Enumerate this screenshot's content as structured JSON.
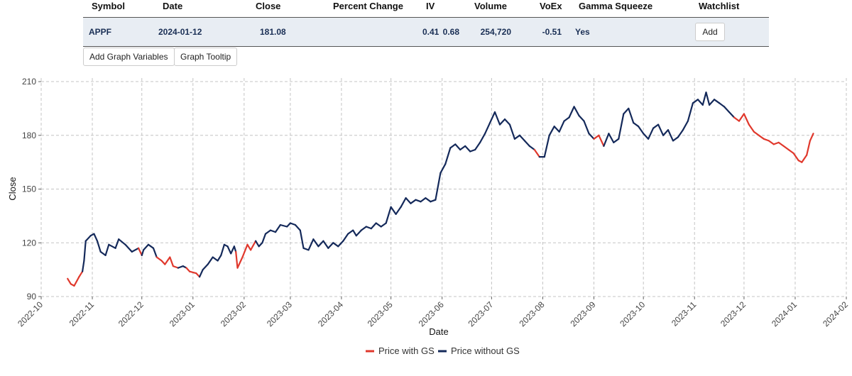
{
  "table": {
    "headers": [
      "Symbol",
      "Date",
      "Close",
      "Percent Change",
      "IV",
      "Volume",
      "VoEx",
      "Gamma Squeeze",
      "Watchlist"
    ],
    "row": {
      "symbol": "APPF",
      "date": "2024-01-12",
      "close": "181.08",
      "percent_change": "0.68",
      "iv": "0.41",
      "volume": "254,720",
      "voex": "-0.51",
      "gamma_squeeze": "Yes",
      "watchlist_button": "Add"
    }
  },
  "buttons": {
    "add_graph_variables": "Add Graph Variables",
    "graph_tooltip": "Graph Tooltip"
  },
  "colors": {
    "with_gs": "#e0382c",
    "without_gs": "#14295a",
    "grid": "#c4c4c4"
  },
  "chart_data": {
    "type": "line",
    "xlabel": "Date",
    "ylabel": "Close",
    "ylim": [
      90,
      212
    ],
    "yticks": [
      90,
      120,
      150,
      180,
      210
    ],
    "xlim": [
      "2022-10-01",
      "2024-02-01"
    ],
    "xticks": [
      "2022-10",
      "2022-11",
      "2022-12",
      "2023-01",
      "2023-02",
      "2023-03",
      "2023-04",
      "2023-05",
      "2023-06",
      "2023-07",
      "2023-08",
      "2023-09",
      "2023-10",
      "2023-11",
      "2023-12",
      "2024-01",
      "2024-02"
    ],
    "grid": true,
    "legend_position": "bottom",
    "legend": [
      "Price with GS",
      "Price without GS"
    ],
    "points": [
      [
        "2022-10-17",
        100,
        1
      ],
      [
        "2022-10-19",
        97,
        1
      ],
      [
        "2022-10-21",
        96,
        1
      ],
      [
        "2022-10-24",
        101,
        1
      ],
      [
        "2022-10-26",
        104,
        1
      ],
      [
        "2022-10-27",
        110,
        0
      ],
      [
        "2022-10-28",
        121,
        0
      ],
      [
        "2022-10-31",
        124,
        0
      ],
      [
        "2022-11-02",
        125,
        0
      ],
      [
        "2022-11-04",
        121,
        0
      ],
      [
        "2022-11-06",
        115,
        0
      ],
      [
        "2022-11-09",
        113,
        0
      ],
      [
        "2022-11-11",
        119,
        0
      ],
      [
        "2022-11-15",
        117,
        0
      ],
      [
        "2022-11-17",
        122,
        0
      ],
      [
        "2022-11-21",
        119,
        0
      ],
      [
        "2022-11-25",
        115,
        0
      ],
      [
        "2022-11-29",
        117,
        0
      ],
      [
        "2022-12-01",
        113,
        1
      ],
      [
        "2022-12-02",
        116,
        0
      ],
      [
        "2022-12-05",
        119,
        0
      ],
      [
        "2022-12-08",
        117,
        0
      ],
      [
        "2022-12-10",
        112,
        0
      ],
      [
        "2022-12-13",
        110,
        1
      ],
      [
        "2022-12-15",
        108,
        1
      ],
      [
        "2022-12-18",
        112,
        1
      ],
      [
        "2022-12-20",
        107,
        1
      ],
      [
        "2022-12-23",
        106,
        1
      ],
      [
        "2022-12-26",
        107,
        0
      ],
      [
        "2022-12-28",
        106,
        0
      ],
      [
        "2022-12-30",
        104,
        1
      ],
      [
        "2023-01-03",
        103,
        1
      ],
      [
        "2023-01-05",
        101,
        1
      ],
      [
        "2023-01-07",
        105,
        0
      ],
      [
        "2023-01-10",
        108,
        0
      ],
      [
        "2023-01-13",
        112,
        0
      ],
      [
        "2023-01-16",
        110,
        0
      ],
      [
        "2023-01-18",
        113,
        0
      ],
      [
        "2023-01-20",
        119,
        0
      ],
      [
        "2023-01-22",
        118,
        0
      ],
      [
        "2023-01-24",
        114,
        0
      ],
      [
        "2023-01-26",
        118,
        0
      ],
      [
        "2023-01-27",
        115,
        0
      ],
      [
        "2023-01-28",
        106,
        1
      ],
      [
        "2023-01-31",
        112,
        1
      ],
      [
        "2023-02-03",
        119,
        1
      ],
      [
        "2023-02-05",
        116,
        1
      ],
      [
        "2023-02-08",
        121,
        1
      ],
      [
        "2023-02-10",
        118,
        0
      ],
      [
        "2023-02-12",
        120,
        0
      ],
      [
        "2023-02-14",
        125,
        0
      ],
      [
        "2023-02-17",
        127,
        0
      ],
      [
        "2023-02-20",
        126,
        0
      ],
      [
        "2023-02-23",
        130,
        0
      ],
      [
        "2023-02-27",
        129,
        0
      ],
      [
        "2023-03-01",
        131,
        0
      ],
      [
        "2023-03-04",
        130,
        0
      ],
      [
        "2023-03-07",
        127,
        0
      ],
      [
        "2023-03-09",
        117,
        0
      ],
      [
        "2023-03-12",
        116,
        0
      ],
      [
        "2023-03-15",
        122,
        0
      ],
      [
        "2023-03-18",
        118,
        0
      ],
      [
        "2023-03-21",
        121,
        0
      ],
      [
        "2023-03-24",
        117,
        0
      ],
      [
        "2023-03-27",
        120,
        0
      ],
      [
        "2023-03-30",
        118,
        0
      ],
      [
        "2023-04-02",
        121,
        0
      ],
      [
        "2023-04-05",
        125,
        0
      ],
      [
        "2023-04-08",
        127,
        0
      ],
      [
        "2023-04-10",
        124,
        0
      ],
      [
        "2023-04-13",
        127,
        0
      ],
      [
        "2023-04-16",
        129,
        0
      ],
      [
        "2023-04-19",
        128,
        0
      ],
      [
        "2023-04-22",
        131,
        0
      ],
      [
        "2023-04-25",
        129,
        0
      ],
      [
        "2023-04-28",
        131,
        0
      ],
      [
        "2023-05-01",
        140,
        0
      ],
      [
        "2023-05-04",
        136,
        0
      ],
      [
        "2023-05-07",
        140,
        0
      ],
      [
        "2023-05-10",
        145,
        0
      ],
      [
        "2023-05-13",
        142,
        0
      ],
      [
        "2023-05-16",
        144,
        0
      ],
      [
        "2023-05-19",
        143,
        0
      ],
      [
        "2023-05-22",
        145,
        0
      ],
      [
        "2023-05-25",
        143,
        0
      ],
      [
        "2023-05-28",
        144,
        0
      ],
      [
        "2023-05-31",
        159,
        0
      ],
      [
        "2023-06-03",
        164,
        0
      ],
      [
        "2023-06-06",
        173,
        0
      ],
      [
        "2023-06-09",
        175,
        0
      ],
      [
        "2023-06-12",
        172,
        0
      ],
      [
        "2023-06-15",
        174,
        0
      ],
      [
        "2023-06-18",
        171,
        0
      ],
      [
        "2023-06-21",
        172,
        0
      ],
      [
        "2023-06-24",
        176,
        0
      ],
      [
        "2023-06-27",
        181,
        0
      ],
      [
        "2023-06-30",
        187,
        0
      ],
      [
        "2023-07-03",
        193,
        0
      ],
      [
        "2023-07-06",
        186,
        0
      ],
      [
        "2023-07-09",
        189,
        0
      ],
      [
        "2023-07-12",
        186,
        0
      ],
      [
        "2023-07-15",
        178,
        0
      ],
      [
        "2023-07-18",
        180,
        0
      ],
      [
        "2023-07-21",
        177,
        0
      ],
      [
        "2023-07-24",
        174,
        0
      ],
      [
        "2023-07-27",
        172,
        0
      ],
      [
        "2023-07-30",
        168,
        1
      ],
      [
        "2023-08-02",
        168,
        0
      ],
      [
        "2023-08-05",
        180,
        0
      ],
      [
        "2023-08-08",
        185,
        0
      ],
      [
        "2023-08-11",
        182,
        0
      ],
      [
        "2023-08-14",
        188,
        0
      ],
      [
        "2023-08-17",
        190,
        0
      ],
      [
        "2023-08-20",
        196,
        0
      ],
      [
        "2023-08-23",
        191,
        0
      ],
      [
        "2023-08-26",
        188,
        0
      ],
      [
        "2023-08-29",
        181,
        0
      ],
      [
        "2023-09-01",
        178,
        0
      ],
      [
        "2023-09-04",
        180,
        1
      ],
      [
        "2023-09-07",
        174,
        1
      ],
      [
        "2023-09-10",
        181,
        0
      ],
      [
        "2023-09-13",
        176,
        0
      ],
      [
        "2023-09-16",
        178,
        0
      ],
      [
        "2023-09-19",
        192,
        0
      ],
      [
        "2023-09-22",
        195,
        0
      ],
      [
        "2023-09-25",
        187,
        0
      ],
      [
        "2023-09-28",
        185,
        0
      ],
      [
        "2023-10-01",
        181,
        0
      ],
      [
        "2023-10-04",
        178,
        0
      ],
      [
        "2023-10-07",
        184,
        0
      ],
      [
        "2023-10-10",
        186,
        0
      ],
      [
        "2023-10-13",
        180,
        0
      ],
      [
        "2023-10-16",
        183,
        0
      ],
      [
        "2023-10-19",
        177,
        0
      ],
      [
        "2023-10-22",
        179,
        0
      ],
      [
        "2023-10-25",
        183,
        0
      ],
      [
        "2023-10-28",
        188,
        0
      ],
      [
        "2023-10-31",
        198,
        0
      ],
      [
        "2023-11-03",
        200,
        0
      ],
      [
        "2023-11-06",
        197,
        0
      ],
      [
        "2023-11-08",
        204,
        0
      ],
      [
        "2023-11-10",
        197,
        0
      ],
      [
        "2023-11-13",
        200,
        0
      ],
      [
        "2023-11-16",
        198,
        0
      ],
      [
        "2023-11-19",
        196,
        0
      ],
      [
        "2023-11-22",
        193,
        0
      ],
      [
        "2023-11-25",
        190,
        0
      ],
      [
        "2023-11-28",
        188,
        1
      ],
      [
        "2023-12-01",
        192,
        1
      ],
      [
        "2023-12-04",
        186,
        1
      ],
      [
        "2023-12-07",
        182,
        1
      ],
      [
        "2023-12-10",
        180,
        1
      ],
      [
        "2023-12-13",
        178,
        1
      ],
      [
        "2023-12-16",
        177,
        1
      ],
      [
        "2023-12-19",
        175,
        1
      ],
      [
        "2023-12-22",
        176,
        1
      ],
      [
        "2023-12-25",
        174,
        1
      ],
      [
        "2023-12-28",
        172,
        1
      ],
      [
        "2023-12-31",
        170,
        1
      ],
      [
        "2024-01-03",
        166,
        1
      ],
      [
        "2024-01-05",
        165,
        1
      ],
      [
        "2024-01-08",
        169,
        1
      ],
      [
        "2024-01-10",
        177,
        1
      ],
      [
        "2024-01-12",
        181,
        1
      ]
    ]
  }
}
